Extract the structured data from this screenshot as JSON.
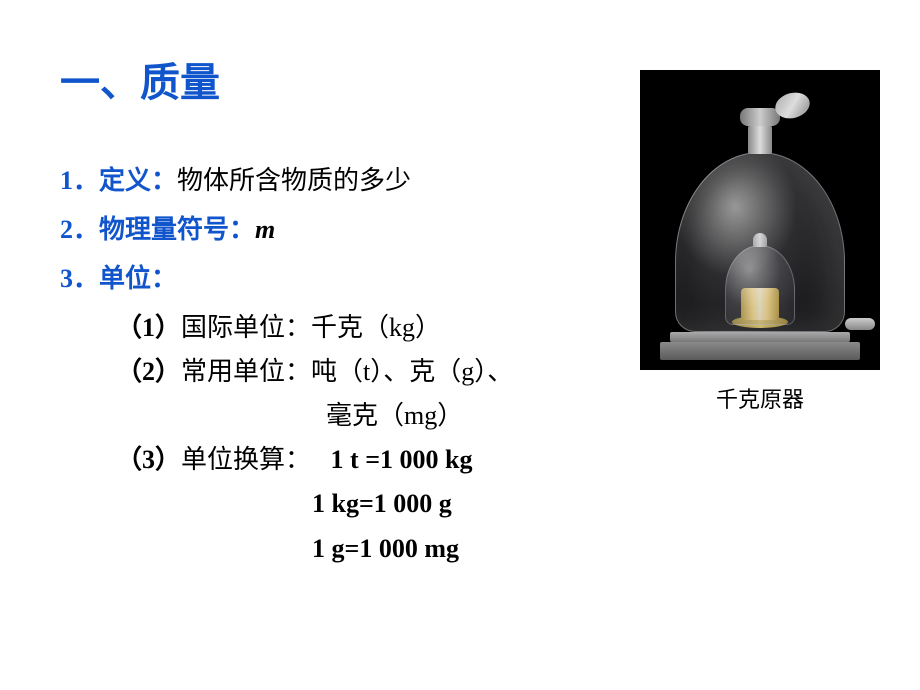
{
  "title": "一、质量",
  "items": {
    "definition": {
      "num": "1．",
      "label": "定义：",
      "text": "物体所含物质的多少"
    },
    "symbol": {
      "num": "2．",
      "label": "物理量符号：",
      "value": "m"
    },
    "unit": {
      "num": "3．",
      "label": "单位："
    }
  },
  "sub_items": {
    "si": {
      "paren": "（1）",
      "text": "国际单位：千克（kg）"
    },
    "common": {
      "paren": "（2）",
      "text": "常用单位：吨（t）、克（g）、",
      "text2": "毫克（mg）"
    },
    "conversion": {
      "paren": "（3）",
      "text": "单位换算：",
      "line1": "1 t =1 000 kg",
      "line2": "1 kg=1 000 g",
      "line3": "1 g=1 000 mg"
    }
  },
  "caption": "千克原器"
}
